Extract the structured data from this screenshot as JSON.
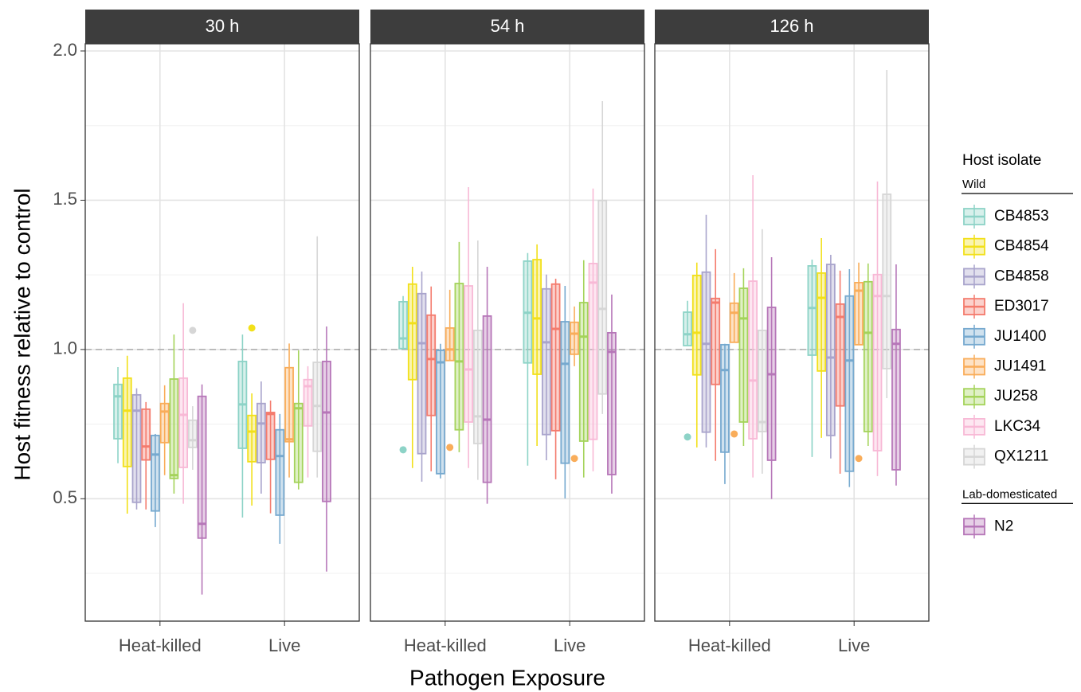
{
  "chart_data": {
    "type": "boxplot",
    "y_label": "Host fitness relative to control",
    "x_label": "Pathogen Exposure",
    "ylim": [
      0.09,
      2.024
    ],
    "yticks": [
      {
        "value": 0.5,
        "label": "0.5"
      },
      {
        "value": 1,
        "label": "1.0"
      },
      {
        "value": 1.5,
        "label": "1.5"
      },
      {
        "value": 2,
        "label": "2.0"
      }
    ],
    "minor_yticks": [
      0.25,
      0.75,
      1.25,
      1.75
    ],
    "grid": true,
    "hline": 1,
    "categories": [
      "Heat-killed",
      "Live"
    ],
    "legend": {
      "title": "Host isolate",
      "position": "right",
      "groups": [
        {
          "title": "Wild",
          "series": [
            {
              "name": "CB4853",
              "color": "#8dd3c7"
            },
            {
              "name": "CB4854",
              "color": "#f2e01a"
            },
            {
              "name": "CB4858",
              "color": "#a9a4cc"
            },
            {
              "name": "ED3017",
              "color": "#f47b6d"
            },
            {
              "name": "JU1400",
              "color": "#76a9cf"
            },
            {
              "name": "JU1491",
              "color": "#f9ad5a"
            },
            {
              "name": "JU258",
              "color": "#a4d35a"
            },
            {
              "name": "LKC34",
              "color": "#f8b9d6"
            },
            {
              "name": "QX1211",
              "color": "#d6d6d6"
            }
          ]
        },
        {
          "title": "Lab-domesticated",
          "series": [
            {
              "name": "N2",
              "color": "#b676b8"
            }
          ]
        }
      ]
    },
    "panels": [
      {
        "title": "30 h",
        "boxes": [
          [
            {
              "stats": [
                0.619,
                0.701,
                0.843,
                0.883,
                0.941
              ]
            },
            {
              "stats": [
                0.45,
                0.608,
                0.795,
                0.904,
                0.979
              ]
            },
            {
              "stats": [
                0.464,
                0.488,
                0.795,
                0.848,
                0.87
              ]
            },
            {
              "stats": [
                0.464,
                0.63,
                0.675,
                0.8,
                0.824
              ]
            },
            {
              "stats": [
                0.405,
                0.459,
                0.648,
                0.712,
                0.717
              ]
            },
            {
              "stats": [
                0.579,
                0.688,
                0.792,
                0.819,
                0.88
              ]
            },
            {
              "stats": [
                0.517,
                0.568,
                0.579,
                0.901,
                1.05
              ]
            },
            {
              "stats": [
                0.483,
                0.605,
                0.781,
                0.904,
                1.155
              ]
            },
            {
              "stats": [
                0.597,
                0.672,
                0.696,
                0.763,
                0.81
              ],
              "outliers": [
                1.064
              ]
            },
            {
              "stats": [
                0.179,
                0.368,
                0.416,
                0.843,
                0.883
              ]
            }
          ],
          [
            {
              "stats": [
                0.437,
                0.669,
                0.816,
                0.96,
                1.05
              ]
            },
            {
              "stats": [
                0.477,
                0.624,
                0.725,
                0.779,
                0.853
              ],
              "outliers": [
                1.072
              ]
            },
            {
              "stats": [
                0.517,
                0.621,
                0.752,
                0.819,
                0.893
              ]
            },
            {
              "stats": [
                0.451,
                0.632,
                0.784,
                0.789,
                0.829
              ]
            },
            {
              "stats": [
                0.349,
                0.445,
                0.643,
                0.731,
                0.784
              ]
            },
            {
              "stats": [
                0.571,
                0.691,
                0.699,
                0.939,
                1.02
              ]
            },
            {
              "stats": [
                0.531,
                0.555,
                0.803,
                0.819,
                0.997
              ]
            },
            {
              "stats": [
                0.571,
                0.744,
                0.877,
                0.899,
                0.944
              ]
            },
            {
              "stats": [
                0.571,
                0.659,
                0.811,
                0.957,
                1.379
              ]
            },
            {
              "stats": [
                0.256,
                0.491,
                0.789,
                0.96,
                1.077
              ]
            }
          ]
        ]
      },
      {
        "title": "54 h",
        "boxes": [
          [
            {
              "stats": [
                1.003,
                1.003,
                1.037,
                1.16,
                1.179
              ],
              "outliers": [
                0.664
              ]
            },
            {
              "stats": [
                0.603,
                0.899,
                1.088,
                1.219,
                1.277
              ]
            },
            {
              "stats": [
                0.557,
                0.651,
                1.021,
                1.187,
                1.261
              ]
            },
            {
              "stats": [
                0.592,
                0.779,
                0.968,
                1.115,
                1.211
              ]
            },
            {
              "stats": [
                0.568,
                0.584,
                0.957,
                0.997,
                1.019
              ]
            },
            {
              "stats": [
                0.963,
                0.963,
                1.0,
                1.072,
                1.2
              ],
              "outliers": [
                0.672
              ]
            },
            {
              "stats": [
                0.656,
                0.731,
                0.96,
                1.221,
                1.36
              ]
            },
            {
              "stats": [
                0.603,
                0.757,
                0.933,
                1.213,
                1.544
              ]
            },
            {
              "stats": [
                0.563,
                0.685,
                0.776,
                1.064,
                1.365
              ]
            },
            {
              "stats": [
                0.483,
                0.555,
                0.765,
                1.112,
                1.277
              ]
            }
          ],
          [
            {
              "stats": [
                0.611,
                0.955,
                1.123,
                1.296,
                1.323
              ]
            },
            {
              "stats": [
                0.677,
                0.917,
                1.104,
                1.301,
                1.352
              ]
            },
            {
              "stats": [
                0.629,
                0.715,
                1.024,
                1.203,
                1.251
              ]
            },
            {
              "stats": [
                0.565,
                0.728,
                1.069,
                1.219,
                1.237
              ]
            },
            {
              "stats": [
                0.501,
                0.619,
                0.952,
                1.093,
                1.213
              ]
            },
            {
              "stats": [
                0.944,
                0.984,
                1.053,
                1.091,
                1.144
              ],
              "outliers": [
                0.635
              ]
            },
            {
              "stats": [
                0.571,
                0.693,
                1.043,
                1.157,
                1.299
              ]
            },
            {
              "stats": [
                0.592,
                0.699,
                1.224,
                1.288,
                1.539
              ]
            },
            {
              "stats": [
                0.784,
                0.851,
                1.136,
                1.499,
                1.832
              ]
            },
            {
              "stats": [
                0.517,
                0.581,
                0.992,
                1.056,
                1.184
              ]
            }
          ]
        ]
      },
      {
        "title": "126 h",
        "boxes": [
          [
            {
              "stats": [
                1.013,
                1.013,
                1.051,
                1.125,
                1.163
              ],
              "outliers": [
                0.707
              ]
            },
            {
              "stats": [
                0.672,
                0.915,
                1.056,
                1.248,
                1.291
              ]
            },
            {
              "stats": [
                0.672,
                0.723,
                1.019,
                1.259,
                1.451
              ]
            },
            {
              "stats": [
                0.627,
                0.883,
                1.157,
                1.171,
                1.336
              ]
            },
            {
              "stats": [
                0.549,
                0.656,
                0.931,
                1.016,
                1.019
              ]
            },
            {
              "stats": [
                1.024,
                1.024,
                1.123,
                1.155,
                1.256
              ],
              "outliers": [
                0.717
              ]
            },
            {
              "stats": [
                0.677,
                0.757,
                1.104,
                1.205,
                1.272
              ]
            },
            {
              "stats": [
                0.571,
                0.701,
                0.896,
                1.229,
                1.584
              ]
            },
            {
              "stats": [
                0.584,
                0.725,
                0.757,
                1.064,
                1.403
              ]
            },
            {
              "stats": [
                0.499,
                0.629,
                0.917,
                1.141,
                1.309
              ]
            }
          ],
          [
            {
              "stats": [
                0.64,
                0.981,
                1.139,
                1.28,
                1.301
              ]
            },
            {
              "stats": [
                0.704,
                0.928,
                1.173,
                1.256,
                1.373
              ]
            },
            {
              "stats": [
                0.635,
                0.712,
                0.973,
                1.285,
                1.317
              ]
            },
            {
              "stats": [
                0.584,
                0.811,
                1.109,
                1.152,
                1.264
              ]
            },
            {
              "stats": [
                0.539,
                0.592,
                0.963,
                1.179,
                1.269
              ]
            },
            {
              "stats": [
                1.016,
                1.016,
                1.197,
                1.224,
                1.291
              ],
              "outliers": [
                0.635
              ]
            },
            {
              "stats": [
                0.677,
                0.725,
                1.056,
                1.227,
                1.288
              ]
            },
            {
              "stats": [
                0.576,
                0.661,
                1.179,
                1.251,
                1.563
              ]
            },
            {
              "stats": [
                0.837,
                0.936,
                1.179,
                1.52,
                1.936
              ]
            },
            {
              "stats": [
                0.544,
                0.597,
                1.019,
                1.067,
                1.285
              ]
            }
          ]
        ]
      }
    ]
  }
}
